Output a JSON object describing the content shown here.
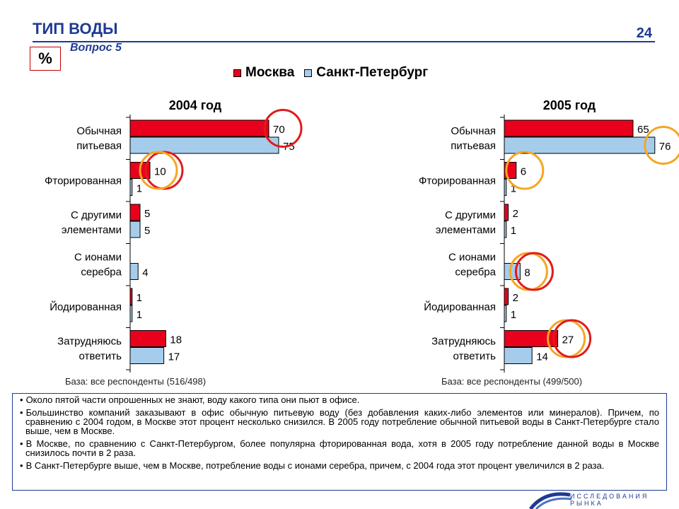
{
  "header": {
    "title": "ТИП ВОДЫ",
    "question": "Вопрос 5",
    "page_number": "24",
    "unit": "%"
  },
  "legend": {
    "moscow": "Москва",
    "spb": "Санкт-Петербург"
  },
  "colors": {
    "moscow": "#e8001c",
    "spb": "#a6ccec",
    "circle_red": "#e01b1b",
    "circle_orange": "#f5a623",
    "brand": "#1f3a93"
  },
  "chart_data": [
    {
      "type": "bar",
      "title": "2004 год",
      "categories": [
        [
          "Обычная",
          "питьевая"
        ],
        [
          "Фторированная"
        ],
        [
          "С другими",
          "элементами"
        ],
        [
          "С ионами",
          "серебра"
        ],
        [
          "Йодированная"
        ],
        [
          "Затрудняюсь",
          "ответить"
        ]
      ],
      "series": [
        {
          "name": "Москва",
          "values": [
            70,
            10,
            5,
            null,
            1,
            18
          ]
        },
        {
          "name": "Санкт-Петербург",
          "values": [
            75,
            1,
            5,
            4,
            1,
            17
          ]
        }
      ],
      "xlim": [
        0,
        100
      ],
      "highlights": [
        {
          "category_index": 0,
          "series": 0,
          "color": "red"
        },
        {
          "category_index": 1,
          "series": 0,
          "color": "red"
        },
        {
          "category_index": 1,
          "series": 0,
          "color": "orange"
        }
      ],
      "base_note": "База: все респонденты (516/498)"
    },
    {
      "type": "bar",
      "title": "2005 год",
      "categories": [
        [
          "Обычная",
          "питьевая"
        ],
        [
          "Фторированная"
        ],
        [
          "С другими",
          "элементами"
        ],
        [
          "С ионами",
          "серебра"
        ],
        [
          "Йодированная"
        ],
        [
          "Затрудняюсь",
          "ответить"
        ]
      ],
      "series": [
        {
          "name": "Москва",
          "values": [
            65,
            6,
            2,
            null,
            2,
            27
          ]
        },
        {
          "name": "Санкт-Петербург",
          "values": [
            76,
            1,
            1,
            8,
            1,
            14
          ]
        }
      ],
      "xlim": [
        0,
        100
      ],
      "highlights": [
        {
          "category_index": 0,
          "series": 1,
          "color": "orange"
        },
        {
          "category_index": 1,
          "series": 0,
          "color": "orange"
        },
        {
          "category_index": 3,
          "series": 1,
          "color": "orange"
        },
        {
          "category_index": 3,
          "series": 1,
          "color": "red"
        },
        {
          "category_index": 5,
          "series": 0,
          "color": "orange"
        },
        {
          "category_index": 5,
          "series": 0,
          "color": "red"
        }
      ],
      "base_note": "База: все респонденты (499/500)"
    }
  ],
  "notes": [
    "Около пятой части опрошенных не знают, воду какого типа они пьют в офисе.",
    "Большинство компаний заказывают в офис обычную питьевую воду (без добавления каких-либо элементов или минералов). Причем, по сравнению с 2004 годом, в Москве этот процент несколько снизился. В 2005 году потребление обычной питьевой воды в Санкт-Петербурге стало выше, чем в Москве.",
    "В Москве, по сравнению с Санкт-Петербургом, более популярна фторированная вода, хотя в 2005 году потребление данной воды в Москве снизилось почти в 2 раза.",
    "В Санкт-Петербурге выше, чем в Москве, потребление воды с ионами серебра, причем, с 2004 года этот процент увеличился в 2 раза."
  ],
  "brand_text": "ИССЛЕДОВАНИЯ РЫНКА"
}
